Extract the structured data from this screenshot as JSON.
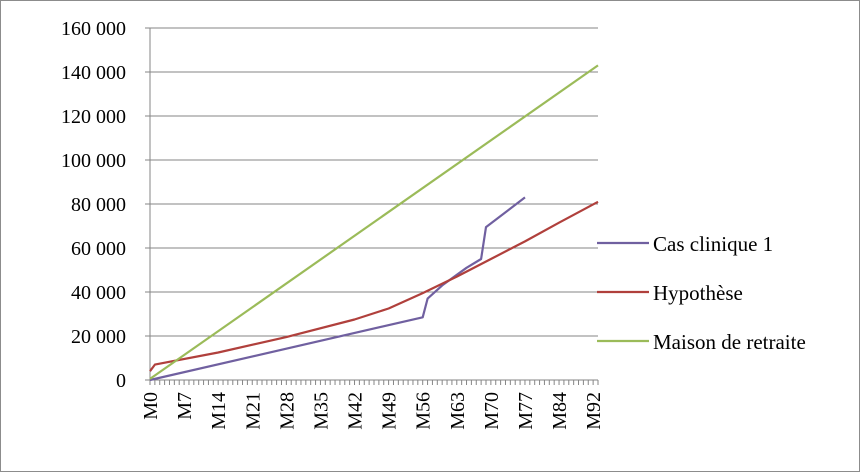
{
  "chart_data": {
    "type": "line",
    "title": "",
    "xlabel": "",
    "ylabel": "",
    "ylim": [
      0,
      160000
    ],
    "y_ticks": [
      0,
      20000,
      40000,
      60000,
      80000,
      100000,
      120000,
      140000,
      160000
    ],
    "y_tick_labels": [
      "0",
      "20 000",
      "40 000",
      "60 000",
      "80 000",
      "100 000",
      "120 000",
      "140 000",
      "160 000"
    ],
    "x_tick_labels": [
      "M0",
      "M7",
      "M14",
      "M21",
      "M28",
      "M35",
      "M42",
      "M49",
      "M56",
      "M63",
      "M70",
      "M77",
      "M84",
      "M92"
    ],
    "x_tick_positions": [
      0,
      7,
      14,
      21,
      28,
      35,
      42,
      49,
      56,
      63,
      70,
      77,
      84,
      91
    ],
    "x_range": [
      0,
      92
    ],
    "grid": "horizontal",
    "legend_position": "right",
    "series": [
      {
        "name": "Cas clinique 1",
        "color": "#7060a0",
        "x": [
          0,
          56,
          57,
          60,
          65,
          68,
          69,
          77
        ],
        "y": [
          0,
          28500,
          37000,
          43000,
          51000,
          55000,
          69500,
          83000
        ]
      },
      {
        "name": "Hypothèse",
        "color": "#b0403c",
        "x": [
          0,
          1,
          14,
          28,
          42,
          49,
          56,
          63,
          70,
          77,
          84,
          92
        ],
        "y": [
          4000,
          7000,
          12500,
          19500,
          27500,
          32500,
          39500,
          47000,
          55000,
          63000,
          71500,
          81000
        ]
      },
      {
        "name": "Maison de retraite",
        "color": "#9bbb59",
        "x": [
          0,
          92
        ],
        "y": [
          500,
          143000
        ]
      }
    ]
  }
}
